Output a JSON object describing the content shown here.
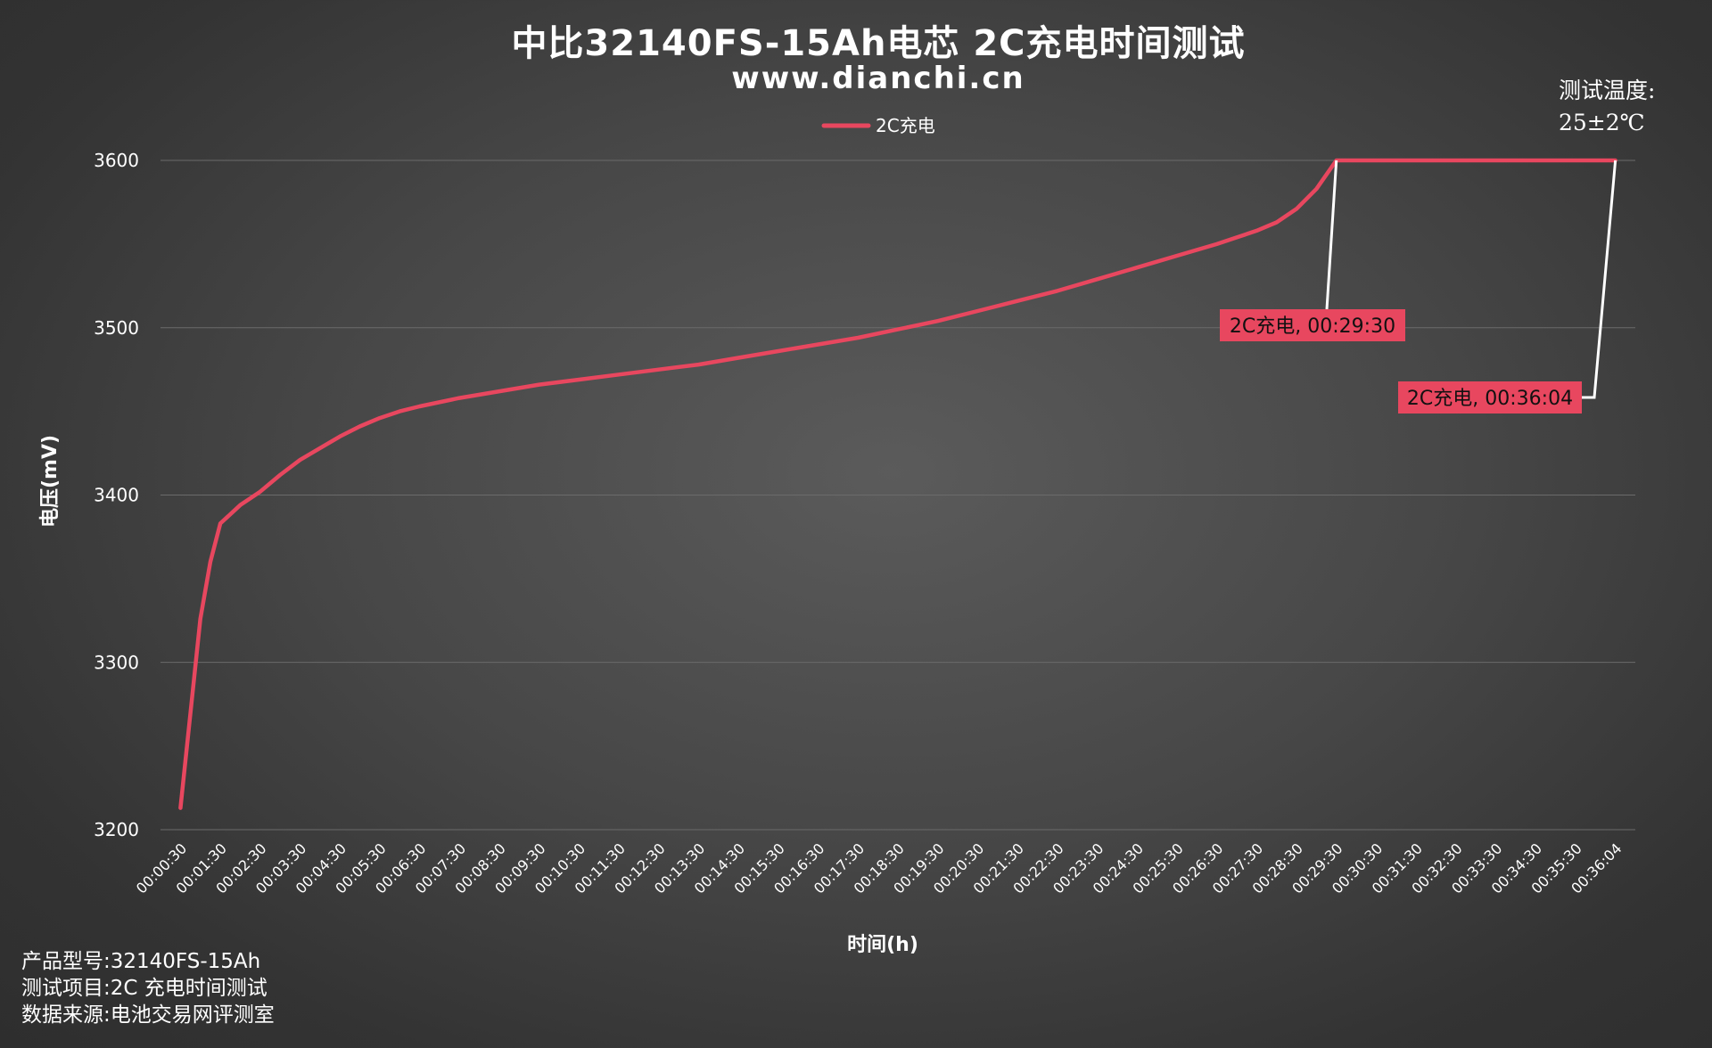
{
  "header": {
    "title": "中比32140FS-15Ah电芯 2C充电时间测试",
    "subtitle": "www.dianchi.cn"
  },
  "temperature": {
    "label": "测试温度:",
    "value": "25±2℃"
  },
  "info": {
    "model": "产品型号:32140FS-15Ah",
    "test_item": "测试项目:2C 充电时间测试",
    "source": "数据来源:电池交易网评测室"
  },
  "colors": {
    "series": "#e8475f",
    "annotation_bg": "#e8475f",
    "leader": "#ffffff",
    "grid": "#6b6b6b"
  },
  "chart_data": {
    "type": "line",
    "xlabel": "时间(h)",
    "ylabel": "电压(mV)",
    "ylim": [
      3200,
      3600
    ],
    "yticks": [
      3200,
      3300,
      3400,
      3500,
      3600
    ],
    "grid": "horizontal",
    "legend": "top-center",
    "x_ticks": [
      "00:00:30",
      "00:01:30",
      "00:02:30",
      "00:03:30",
      "00:04:30",
      "00:05:30",
      "00:06:30",
      "00:07:30",
      "00:08:30",
      "00:09:30",
      "00:10:30",
      "00:11:30",
      "00:12:30",
      "00:13:30",
      "00:14:30",
      "00:15:30",
      "00:16:30",
      "00:17:30",
      "00:18:30",
      "00:19:30",
      "00:20:30",
      "00:21:30",
      "00:22:30",
      "00:23:30",
      "00:24:30",
      "00:25:30",
      "00:26:30",
      "00:27:30",
      "00:28:30",
      "00:29:30",
      "00:30:30",
      "00:31:30",
      "00:32:30",
      "00:33:30",
      "00:34:30",
      "00:35:30",
      "00:36:04"
    ],
    "series": [
      {
        "name": "2C充电",
        "points": [
          [
            "00:00:30",
            3213
          ],
          [
            "00:01:00",
            3326
          ],
          [
            "00:01:15",
            3360
          ],
          [
            "00:01:30",
            3383
          ],
          [
            "00:02:00",
            3394
          ],
          [
            "00:02:30",
            3402
          ],
          [
            "00:03:00",
            3412
          ],
          [
            "00:03:30",
            3421
          ],
          [
            "00:04:00",
            3428
          ],
          [
            "00:04:30",
            3435
          ],
          [
            "00:05:00",
            3441
          ],
          [
            "00:05:30",
            3446
          ],
          [
            "00:06:00",
            3450
          ],
          [
            "00:06:30",
            3453
          ],
          [
            "00:07:30",
            3458
          ],
          [
            "00:08:30",
            3462
          ],
          [
            "00:09:30",
            3466
          ],
          [
            "00:10:30",
            3469
          ],
          [
            "00:11:30",
            3472
          ],
          [
            "00:12:30",
            3475
          ],
          [
            "00:13:30",
            3478
          ],
          [
            "00:14:30",
            3482
          ],
          [
            "00:15:30",
            3486
          ],
          [
            "00:16:30",
            3490
          ],
          [
            "00:17:30",
            3494
          ],
          [
            "00:18:30",
            3499
          ],
          [
            "00:19:30",
            3504
          ],
          [
            "00:20:30",
            3510
          ],
          [
            "00:21:30",
            3516
          ],
          [
            "00:22:30",
            3522
          ],
          [
            "00:23:30",
            3529
          ],
          [
            "00:24:30",
            3536
          ],
          [
            "00:25:30",
            3543
          ],
          [
            "00:26:30",
            3550
          ],
          [
            "00:27:00",
            3554
          ],
          [
            "00:27:30",
            3558
          ],
          [
            "00:28:00",
            3563
          ],
          [
            "00:28:30",
            3571
          ],
          [
            "00:29:00",
            3583
          ],
          [
            "00:29:30",
            3600
          ],
          [
            "00:30:30",
            3600
          ],
          [
            "00:31:30",
            3600
          ],
          [
            "00:32:30",
            3600
          ],
          [
            "00:33:30",
            3600
          ],
          [
            "00:34:30",
            3600
          ],
          [
            "00:35:30",
            3600
          ],
          [
            "00:36:04",
            3600
          ]
        ]
      }
    ],
    "annotations": [
      {
        "x": "00:29:30",
        "y": 3600,
        "label": "2C充电, 00:29:30"
      },
      {
        "x": "00:36:04",
        "y": 3600,
        "label": "2C充电, 00:36:04"
      }
    ]
  }
}
